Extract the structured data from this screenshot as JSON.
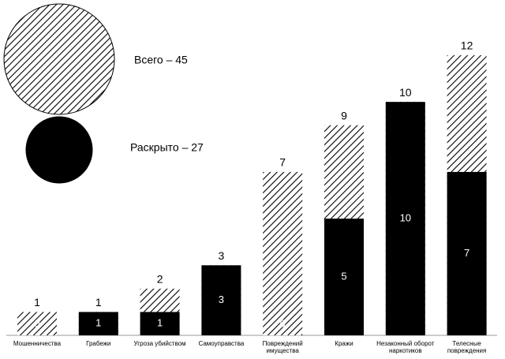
{
  "chart_data": {
    "type": "bar",
    "categories": [
      "Мошенничества",
      "Грабежи",
      "Угроза убийством",
      "Самоуправства",
      "Повреждений имущества",
      "Кражи",
      "Незаконный оборот наркотиков",
      "Телесные повреждения"
    ],
    "series": [
      {
        "name": "Всего – 45",
        "color": "#000000",
        "pattern": "hatch",
        "values": [
          1,
          1,
          2,
          3,
          7,
          9,
          10,
          12
        ]
      },
      {
        "name": "Раскрыто – 27",
        "color": "#000000",
        "pattern": "solid",
        "values": [
          0,
          1,
          1,
          3,
          0,
          5,
          10,
          7
        ]
      }
    ]
  }
}
